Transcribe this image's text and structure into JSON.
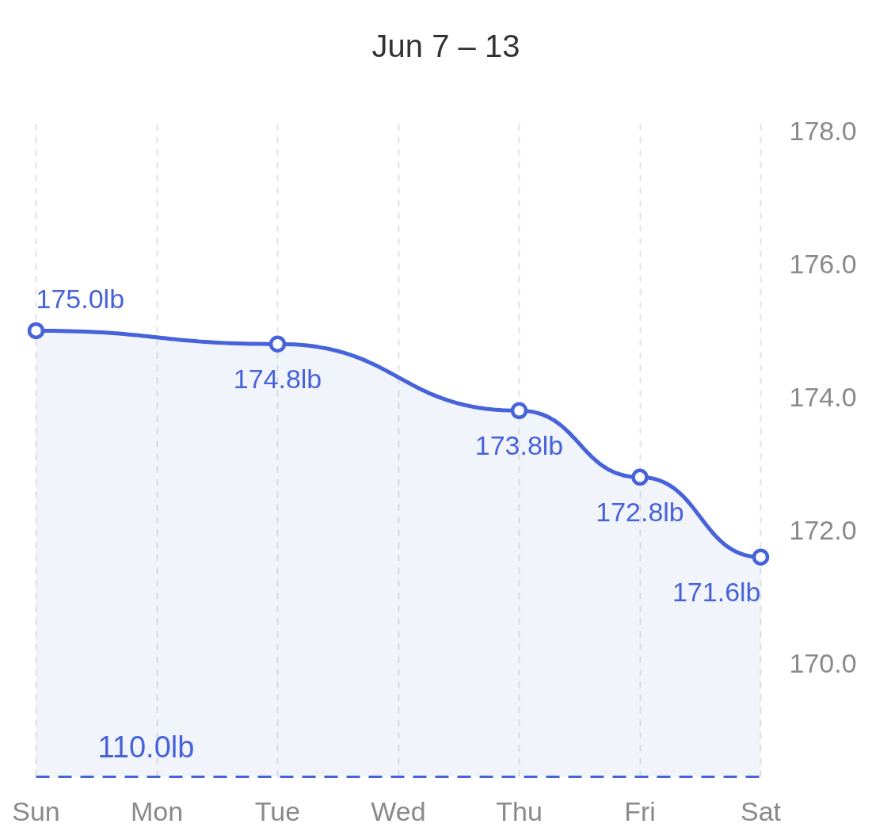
{
  "chart_data": {
    "type": "area",
    "title": "Jun 7 – 13",
    "categories": [
      "Sun",
      "Mon",
      "Tue",
      "Wed",
      "Thu",
      "Fri",
      "Sat"
    ],
    "series": [
      {
        "x": [
          "Sun",
          "Tue",
          "Thu",
          "Fri",
          "Sat"
        ],
        "values": [
          175.0,
          174.8,
          173.8,
          172.8,
          171.6
        ],
        "color": "#4763da",
        "value_labels": [
          "175.0lb",
          "174.8lb",
          "173.8lb",
          "172.8lb",
          "171.6lb"
        ]
      }
    ],
    "ylim": [
      168.3,
      178.2
    ],
    "yticks": [
      {
        "value": 170,
        "label": "170.0"
      },
      {
        "value": 172,
        "label": "172.0"
      },
      {
        "value": 174,
        "label": "174.0"
      },
      {
        "value": 176,
        "label": "176.0"
      },
      {
        "value": 178,
        "label": "178.0"
      }
    ],
    "grid": "x",
    "marker": "circle",
    "line_style": "solid",
    "annotations": [
      "110.0lb"
    ]
  }
}
